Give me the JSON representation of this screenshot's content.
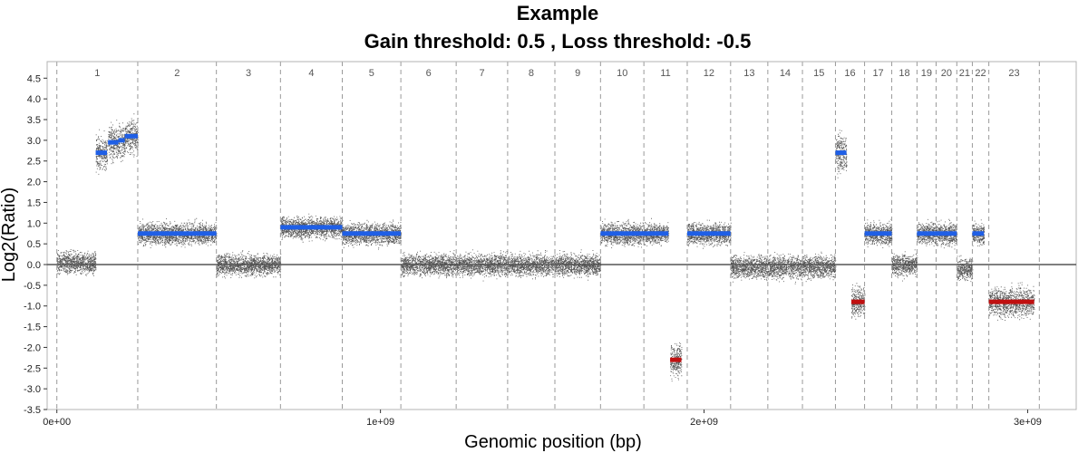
{
  "chart_data": {
    "type": "scatter",
    "title": "Example",
    "subtitle": "Gain threshold:  0.5 , Loss threshold: -0.5",
    "xlabel": "Genomic position (bp)",
    "ylabel": "Log2(Ratio)",
    "xlim": [
      -30000000,
      3150000000
    ],
    "ylim": [
      -3.5,
      4.9
    ],
    "x_ticks": [
      {
        "value": 0,
        "label": "0e+00"
      },
      {
        "value": 1000000000,
        "label": "1e+09"
      },
      {
        "value": 2000000000,
        "label": "2e+09"
      },
      {
        "value": 3000000000,
        "label": "3e+09"
      }
    ],
    "y_ticks": [
      -3.5,
      -3.0,
      -2.5,
      -2.0,
      -1.5,
      -1.0,
      -0.5,
      0.0,
      0.5,
      1.0,
      1.5,
      2.0,
      2.5,
      3.0,
      3.5,
      4.0,
      4.5
    ],
    "y_tick_labels": [
      "-3.5",
      "-3.0",
      "-2.5",
      "-2.0",
      "-1.5",
      "-1.0",
      "-0.5",
      "0.0",
      "0.5",
      "1.0",
      "1.5",
      "2.0",
      "2.5",
      "3.0",
      "3.5",
      "4.0",
      "4.5"
    ],
    "gain_threshold": 0.5,
    "loss_threshold": -0.5,
    "chromosomes": [
      {
        "name": "1",
        "start": 0,
        "end": 250000000
      },
      {
        "name": "2",
        "start": 250000000,
        "end": 493000000
      },
      {
        "name": "3",
        "start": 493000000,
        "end": 691000000
      },
      {
        "name": "4",
        "start": 691000000,
        "end": 882000000
      },
      {
        "name": "5",
        "start": 882000000,
        "end": 1063000000
      },
      {
        "name": "6",
        "start": 1063000000,
        "end": 1234000000
      },
      {
        "name": "7",
        "start": 1234000000,
        "end": 1393000000
      },
      {
        "name": "8",
        "start": 1393000000,
        "end": 1539000000
      },
      {
        "name": "9",
        "start": 1539000000,
        "end": 1680000000
      },
      {
        "name": "10",
        "start": 1680000000,
        "end": 1814000000
      },
      {
        "name": "11",
        "start": 1814000000,
        "end": 1948000000
      },
      {
        "name": "12",
        "start": 1948000000,
        "end": 2082000000
      },
      {
        "name": "13",
        "start": 2082000000,
        "end": 2197000000
      },
      {
        "name": "14",
        "start": 2197000000,
        "end": 2304000000
      },
      {
        "name": "15",
        "start": 2304000000,
        "end": 2406000000
      },
      {
        "name": "16",
        "start": 2406000000,
        "end": 2496000000
      },
      {
        "name": "17",
        "start": 2496000000,
        "end": 2580000000
      },
      {
        "name": "18",
        "start": 2580000000,
        "end": 2658000000
      },
      {
        "name": "19",
        "start": 2658000000,
        "end": 2717000000
      },
      {
        "name": "20",
        "start": 2717000000,
        "end": 2781000000
      },
      {
        "name": "21",
        "start": 2781000000,
        "end": 2829000000
      },
      {
        "name": "22",
        "start": 2829000000,
        "end": 2880000000
      },
      {
        "name": "23",
        "start": 2880000000,
        "end": 3036000000
      }
    ],
    "segments": [
      {
        "start": 120000000,
        "end": 155000000,
        "value": 2.7,
        "status": "gain"
      },
      {
        "start": 158000000,
        "end": 190000000,
        "value": 2.95,
        "status": "gain"
      },
      {
        "start": 190000000,
        "end": 210000000,
        "value": 3.0,
        "status": "gain"
      },
      {
        "start": 210000000,
        "end": 250000000,
        "value": 3.1,
        "status": "gain"
      },
      {
        "start": 250000000,
        "end": 493000000,
        "value": 0.75,
        "status": "gain"
      },
      {
        "start": 691000000,
        "end": 882000000,
        "value": 0.9,
        "status": "gain"
      },
      {
        "start": 882000000,
        "end": 1063000000,
        "value": 0.75,
        "status": "gain"
      },
      {
        "start": 1680000000,
        "end": 1890000000,
        "value": 0.75,
        "status": "gain"
      },
      {
        "start": 1895000000,
        "end": 1930000000,
        "value": -2.3,
        "status": "loss"
      },
      {
        "start": 1948000000,
        "end": 2082000000,
        "value": 0.75,
        "status": "gain"
      },
      {
        "start": 2406000000,
        "end": 2440000000,
        "value": 2.7,
        "status": "gain"
      },
      {
        "start": 2455000000,
        "end": 2496000000,
        "value": -0.9,
        "status": "loss"
      },
      {
        "start": 2496000000,
        "end": 2580000000,
        "value": 0.75,
        "status": "gain"
      },
      {
        "start": 2658000000,
        "end": 2781000000,
        "value": 0.75,
        "status": "gain"
      },
      {
        "start": 2829000000,
        "end": 2865000000,
        "value": 0.75,
        "status": "gain"
      },
      {
        "start": 2880000000,
        "end": 3020000000,
        "value": -0.9,
        "status": "loss"
      }
    ],
    "probe_regions": [
      {
        "start": 0,
        "end": 120000000,
        "center": 0.05,
        "spread": 0.22
      },
      {
        "start": 120000000,
        "end": 155000000,
        "center": 2.7,
        "spread": 0.35
      },
      {
        "start": 158000000,
        "end": 210000000,
        "center": 2.95,
        "spread": 0.35
      },
      {
        "start": 210000000,
        "end": 250000000,
        "center": 3.1,
        "spread": 0.35
      },
      {
        "start": 250000000,
        "end": 493000000,
        "center": 0.75,
        "spread": 0.22
      },
      {
        "start": 493000000,
        "end": 691000000,
        "center": 0.0,
        "spread": 0.22
      },
      {
        "start": 691000000,
        "end": 882000000,
        "center": 0.9,
        "spread": 0.22
      },
      {
        "start": 882000000,
        "end": 1063000000,
        "center": 0.75,
        "spread": 0.22
      },
      {
        "start": 1063000000,
        "end": 1680000000,
        "center": 0.0,
        "spread": 0.22
      },
      {
        "start": 1680000000,
        "end": 1890000000,
        "center": 0.75,
        "spread": 0.22
      },
      {
        "start": 1895000000,
        "end": 1930000000,
        "center": -2.3,
        "spread": 0.35
      },
      {
        "start": 1948000000,
        "end": 2082000000,
        "center": 0.75,
        "spread": 0.22
      },
      {
        "start": 2082000000,
        "end": 2406000000,
        "center": -0.05,
        "spread": 0.24
      },
      {
        "start": 2406000000,
        "end": 2440000000,
        "center": 2.7,
        "spread": 0.4
      },
      {
        "start": 2455000000,
        "end": 2496000000,
        "center": -0.9,
        "spread": 0.3
      },
      {
        "start": 2496000000,
        "end": 2580000000,
        "center": 0.75,
        "spread": 0.22
      },
      {
        "start": 2580000000,
        "end": 2658000000,
        "center": 0.0,
        "spread": 0.22
      },
      {
        "start": 2658000000,
        "end": 2781000000,
        "center": 0.75,
        "spread": 0.22
      },
      {
        "start": 2781000000,
        "end": 2829000000,
        "center": -0.1,
        "spread": 0.22
      },
      {
        "start": 2829000000,
        "end": 2865000000,
        "center": 0.75,
        "spread": 0.22
      },
      {
        "start": 2880000000,
        "end": 3020000000,
        "center": -0.9,
        "spread": 0.3
      }
    ],
    "colors": {
      "points": "#555555",
      "gain_segment": "#1f5fe6",
      "loss_segment": "#c01010",
      "zero_line": "#555555",
      "chrom_boundary": "#9a9a9a",
      "frame": "#b3b3b3"
    },
    "grid": false
  }
}
